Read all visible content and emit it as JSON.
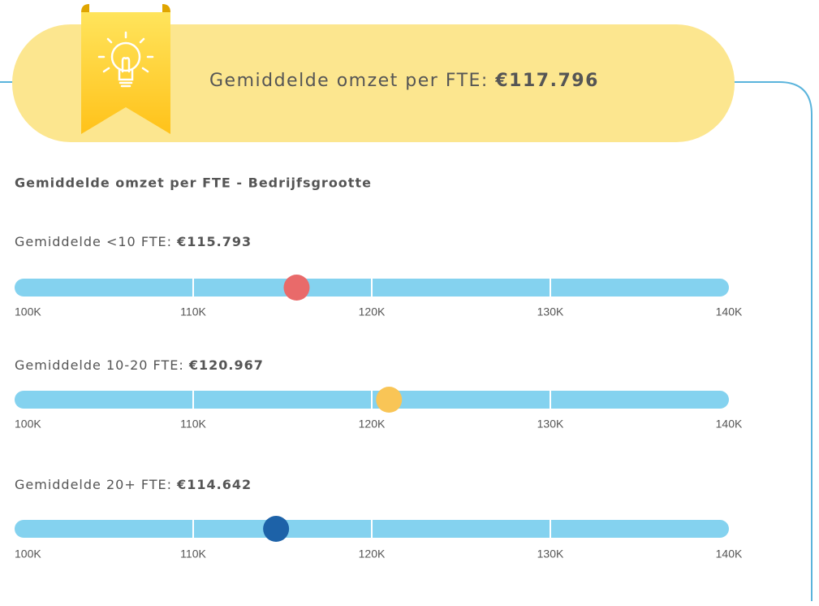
{
  "banner": {
    "label": "Gemiddelde omzet per FTE:",
    "value": "€117.796"
  },
  "title": "Gemiddelde omzet per FTE - Bedrijfsgrootte",
  "chart_data": [
    {
      "type": "dot",
      "label": "Gemiddelde <10 FTE:",
      "values": [
        115793
      ],
      "value_labels": [
        "€115.793"
      ],
      "color": "#e96a6a",
      "xlim": [
        100000,
        140000
      ],
      "xticks": [
        {
          "value": 100000,
          "label": "100K"
        },
        {
          "value": 110000,
          "label": "110K"
        },
        {
          "value": 120000,
          "label": "120K"
        },
        {
          "value": 130000,
          "label": "130K"
        },
        {
          "value": 140000,
          "label": "140K"
        }
      ]
    },
    {
      "type": "dot",
      "label": "Gemiddelde 10-20 FTE:",
      "values": [
        120967
      ],
      "value_labels": [
        "€120.967"
      ],
      "color": "#f9c556",
      "xlim": [
        100000,
        140000
      ],
      "xticks": [
        {
          "value": 100000,
          "label": "100K"
        },
        {
          "value": 110000,
          "label": "110K"
        },
        {
          "value": 120000,
          "label": "120K"
        },
        {
          "value": 130000,
          "label": "130K"
        },
        {
          "value": 140000,
          "label": "140K"
        }
      ]
    },
    {
      "type": "dot",
      "label": "Gemiddelde 20+ FTE:",
      "values": [
        114642
      ],
      "value_labels": [
        "€114.642"
      ],
      "color": "#1d62a8",
      "xlim": [
        100000,
        140000
      ],
      "xticks": [
        {
          "value": 100000,
          "label": "100K"
        },
        {
          "value": 110000,
          "label": "110K"
        },
        {
          "value": 120000,
          "label": "120K"
        },
        {
          "value": 130000,
          "label": "130K"
        },
        {
          "value": 140000,
          "label": "140K"
        }
      ]
    }
  ]
}
